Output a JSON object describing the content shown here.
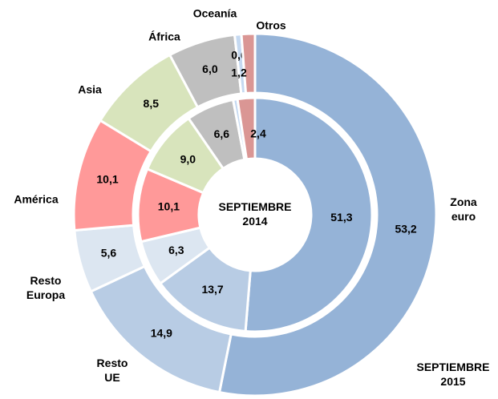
{
  "chart_data": {
    "type": "donut",
    "categories": [
      "Zona euro",
      "Resto UE",
      "Resto Europa",
      "América",
      "Asia",
      "África",
      "Oceanía",
      "Otros"
    ],
    "colors": [
      "#95b3d7",
      "#b8cce4",
      "#dce6f1",
      "#ff9999",
      "#d8e4bc",
      "#bfbfbf",
      "#c5d9f1",
      "#da9694"
    ],
    "series": [
      {
        "name": "SEPTIEMBRE 2015",
        "values": [
          53.2,
          14.9,
          5.6,
          10.1,
          8.5,
          6.0,
          0.6,
          1.2
        ],
        "value_labels": [
          "53,2",
          "14,9",
          "5,6",
          "10,1",
          "8,5",
          "6,0",
          "0,6",
          "1,2"
        ]
      },
      {
        "name": "SEPTIEMBRE 2014",
        "values": [
          51.3,
          13.7,
          6.3,
          10.1,
          9.0,
          6.6,
          0.6,
          2.4
        ],
        "value_labels": [
          "51,3",
          "13,7",
          "6,3",
          "10,1",
          "9,0",
          "6,6",
          "0,6",
          "2,4"
        ]
      }
    ]
  }
}
